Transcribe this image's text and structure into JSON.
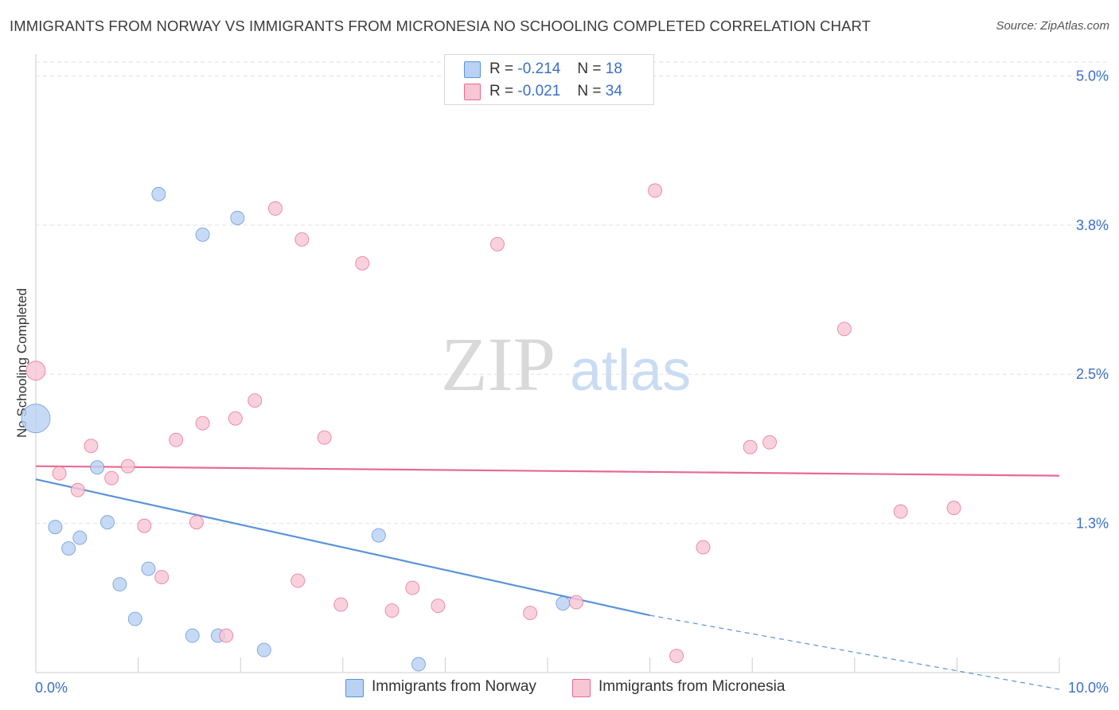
{
  "chart_data": {
    "type": "scatter",
    "title": "IMMIGRANTS FROM NORWAY VS IMMIGRANTS FROM MICRONESIA NO SCHOOLING COMPLETED CORRELATION CHART",
    "source": "Source: ZipAtlas.com",
    "xlabel": "",
    "ylabel": "No Schooling Completed",
    "xlim": [
      0,
      10
    ],
    "ylim": [
      0,
      5.25
    ],
    "x_tick_labels": [
      "0.0%",
      "10.0%"
    ],
    "y_ticks": [
      {
        "value": 1.25,
        "label": "1.3%"
      },
      {
        "value": 2.5,
        "label": "2.5%"
      },
      {
        "value": 3.75,
        "label": "3.8%"
      },
      {
        "value": 5.0,
        "label": "5.0%"
      }
    ],
    "watermark": {
      "zip": "ZIP",
      "atlas": "atlas"
    },
    "legend": [
      {
        "series": "Norway",
        "r_label": "R =",
        "r_value": "-0.214",
        "n_label": "N =",
        "n_value": "18"
      },
      {
        "series": "Micronesia",
        "r_label": "R =",
        "r_value": "-0.021",
        "n_label": "N =",
        "n_value": "34"
      }
    ],
    "series": [
      {
        "name": "Immigrants from Norway",
        "color": "#5b93d9",
        "fill": "#b9d1f2",
        "trend": {
          "x0": 0,
          "y0": 1.62,
          "x1": 6.0,
          "y1": 0.48,
          "dash_to_x": 10,
          "dash_to_y": -0.14
        },
        "points": [
          {
            "x": 0.0,
            "y": 2.13,
            "size": "large"
          },
          {
            "x": 0.19,
            "y": 1.22
          },
          {
            "x": 0.32,
            "y": 1.04
          },
          {
            "x": 0.43,
            "y": 1.13
          },
          {
            "x": 0.6,
            "y": 1.72
          },
          {
            "x": 0.7,
            "y": 1.26
          },
          {
            "x": 0.82,
            "y": 0.74
          },
          {
            "x": 0.97,
            "y": 0.45
          },
          {
            "x": 1.1,
            "y": 0.87
          },
          {
            "x": 1.2,
            "y": 4.01
          },
          {
            "x": 1.53,
            "y": 0.31
          },
          {
            "x": 1.63,
            "y": 3.67
          },
          {
            "x": 1.78,
            "y": 0.31
          },
          {
            "x": 1.97,
            "y": 3.81
          },
          {
            "x": 2.23,
            "y": 0.19
          },
          {
            "x": 3.35,
            "y": 1.15
          },
          {
            "x": 3.74,
            "y": 0.07
          },
          {
            "x": 5.15,
            "y": 0.58
          }
        ]
      },
      {
        "name": "Immigrants from Micronesia",
        "color": "#e86a92",
        "fill": "#f7c6d5",
        "trend": {
          "x0": 0,
          "y0": 1.73,
          "x1": 10,
          "y1": 1.65
        },
        "points": [
          {
            "x": 0.0,
            "y": 2.53,
            "size": "medium"
          },
          {
            "x": 0.23,
            "y": 1.67
          },
          {
            "x": 0.41,
            "y": 1.53
          },
          {
            "x": 0.54,
            "y": 1.9
          },
          {
            "x": 0.74,
            "y": 1.63
          },
          {
            "x": 0.9,
            "y": 1.73
          },
          {
            "x": 1.06,
            "y": 1.23
          },
          {
            "x": 1.23,
            "y": 0.8
          },
          {
            "x": 1.37,
            "y": 1.95
          },
          {
            "x": 1.57,
            "y": 1.26
          },
          {
            "x": 1.63,
            "y": 2.09
          },
          {
            "x": 1.86,
            "y": 0.31
          },
          {
            "x": 1.95,
            "y": 2.13
          },
          {
            "x": 2.14,
            "y": 2.28
          },
          {
            "x": 2.34,
            "y": 3.89
          },
          {
            "x": 2.56,
            "y": 0.77
          },
          {
            "x": 2.6,
            "y": 3.63
          },
          {
            "x": 2.82,
            "y": 1.97
          },
          {
            "x": 2.98,
            "y": 0.57
          },
          {
            "x": 3.19,
            "y": 3.43
          },
          {
            "x": 3.48,
            "y": 0.52
          },
          {
            "x": 3.68,
            "y": 0.71
          },
          {
            "x": 3.93,
            "y": 0.56
          },
          {
            "x": 4.51,
            "y": 3.59
          },
          {
            "x": 4.83,
            "y": 0.5
          },
          {
            "x": 5.28,
            "y": 0.59
          },
          {
            "x": 6.05,
            "y": 4.04
          },
          {
            "x": 6.26,
            "y": 0.14
          },
          {
            "x": 6.52,
            "y": 1.05
          },
          {
            "x": 6.98,
            "y": 1.89
          },
          {
            "x": 7.17,
            "y": 1.93
          },
          {
            "x": 7.9,
            "y": 2.88
          },
          {
            "x": 8.45,
            "y": 1.35
          },
          {
            "x": 8.97,
            "y": 1.38
          }
        ]
      }
    ]
  }
}
